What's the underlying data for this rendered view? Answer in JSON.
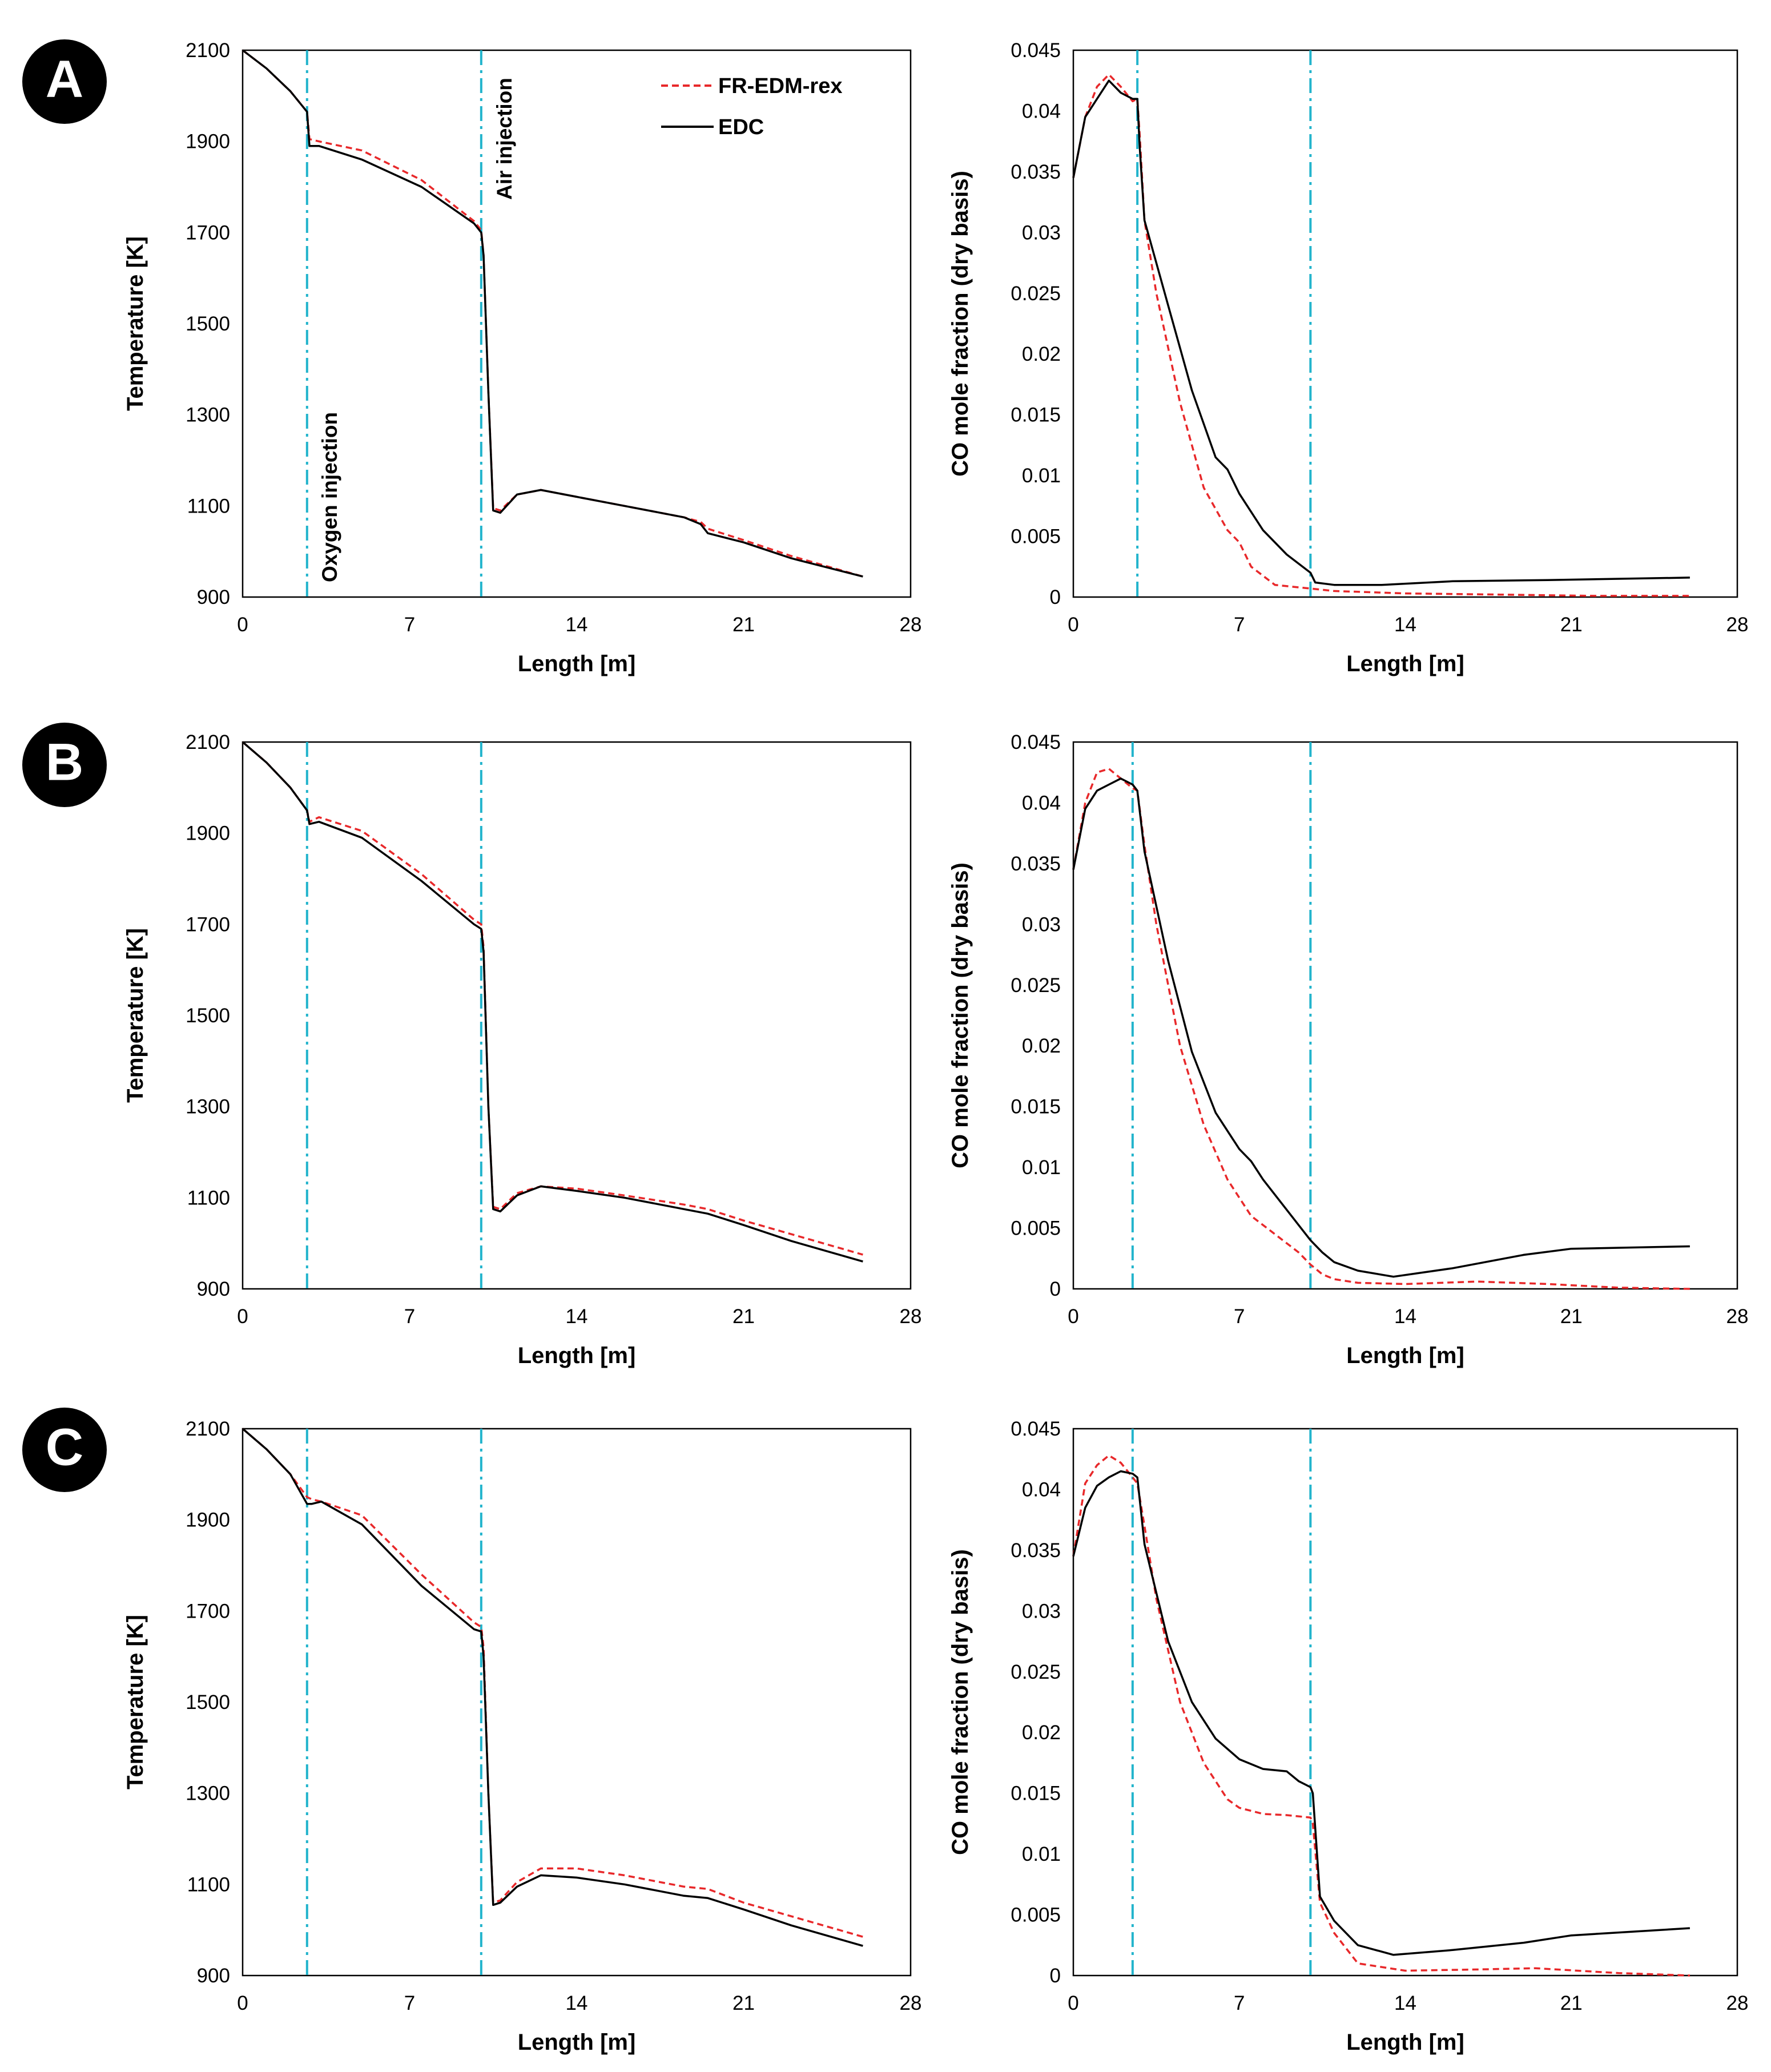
{
  "figure": {
    "badge_color": "#000000",
    "badge_text_color": "#ffffff",
    "series_colors": {
      "FR-EDM-rex": "#e8282a",
      "EDC": "#000000"
    },
    "injection_line_color": "#22b4cc"
  },
  "legend": {
    "entries": [
      {
        "name": "FR-EDM-rex",
        "style": "dashed",
        "color": "#e8282a"
      },
      {
        "name": "EDC",
        "style": "solid",
        "color": "#000000"
      }
    ]
  },
  "annotations": {
    "oxygen_injection": "Oxygen injection",
    "air_injection": "Air injection"
  },
  "chart_data": [
    {
      "panel": "A",
      "type": "line",
      "xlabel": "Length [m]",
      "ylabel": "Temperature [K]",
      "xlim": [
        0,
        28
      ],
      "ylim": [
        900,
        2100
      ],
      "xticks": [
        "0",
        "7",
        "14",
        "21",
        "28"
      ],
      "yticks": [
        "900",
        "1100",
        "1300",
        "1500",
        "1700",
        "1900",
        "2100"
      ],
      "injection_lines_x": [
        2.7,
        10
      ],
      "series": [
        {
          "name": "FR-EDM-rex",
          "x": [
            0,
            1,
            2,
            2.7,
            2.8,
            3.2,
            5,
            7.5,
            9.7,
            10,
            10.1,
            10.3,
            10.5,
            10.8,
            11.5,
            12.5,
            14,
            16,
            18.5,
            19.2,
            19.5,
            21,
            23,
            26
          ],
          "y": [
            2100,
            2060,
            2010,
            1965,
            1905,
            1900,
            1880,
            1815,
            1725,
            1705,
            1650,
            1350,
            1095,
            1090,
            1125,
            1135,
            1120,
            1100,
            1075,
            1065,
            1050,
            1025,
            990,
            945
          ]
        },
        {
          "name": "EDC",
          "x": [
            0,
            1,
            2,
            2.7,
            2.8,
            3.2,
            5,
            7.5,
            9.7,
            10,
            10.1,
            10.3,
            10.5,
            10.8,
            11.5,
            12.5,
            14,
            16,
            18.5,
            19.2,
            19.5,
            21,
            23,
            26
          ],
          "y": [
            2100,
            2060,
            2010,
            1965,
            1890,
            1890,
            1860,
            1800,
            1720,
            1700,
            1650,
            1350,
            1090,
            1085,
            1125,
            1135,
            1120,
            1100,
            1075,
            1060,
            1040,
            1020,
            985,
            945
          ]
        }
      ]
    },
    {
      "panel": "A",
      "type": "line",
      "xlabel": "Length [m]",
      "ylabel": "CO mole fraction (dry basis)",
      "xlim": [
        0,
        28
      ],
      "ylim": [
        0,
        0.045
      ],
      "xticks": [
        "0",
        "7",
        "14",
        "21",
        "28"
      ],
      "yticks": [
        "0",
        "0.005",
        "0.01",
        "0.015",
        "0.02",
        "0.025",
        "0.03",
        "0.035",
        "0.04",
        "0.045"
      ],
      "injection_lines_x": [
        2.7,
        10
      ],
      "series": [
        {
          "name": "FR-EDM-rex",
          "x": [
            0,
            0.5,
            1,
            1.5,
            2,
            2.5,
            2.7,
            2.8,
            3,
            3.5,
            4.5,
            5.5,
            6.5,
            7,
            7.5,
            8.5,
            10,
            11,
            14,
            18,
            22,
            26
          ],
          "y": [
            0.0345,
            0.0395,
            0.042,
            0.043,
            0.042,
            0.0408,
            0.041,
            0.038,
            0.031,
            0.025,
            0.016,
            0.009,
            0.0055,
            0.0045,
            0.0025,
            0.001,
            0.0007,
            0.0005,
            0.0003,
            0.0002,
            0.0001,
            0.0001
          ]
        },
        {
          "name": "EDC",
          "x": [
            0,
            0.5,
            1,
            1.5,
            2,
            2.5,
            2.7,
            2.8,
            3,
            4,
            5,
            6,
            6.5,
            7,
            8,
            9,
            10,
            10.2,
            11,
            13,
            16,
            20,
            26
          ],
          "y": [
            0.0345,
            0.0395,
            0.041,
            0.0425,
            0.0415,
            0.041,
            0.041,
            0.037,
            0.031,
            0.024,
            0.017,
            0.0115,
            0.0105,
            0.0085,
            0.0055,
            0.0035,
            0.002,
            0.0012,
            0.001,
            0.001,
            0.0013,
            0.0014,
            0.0016
          ]
        }
      ]
    },
    {
      "panel": "B",
      "type": "line",
      "xlabel": "Length [m]",
      "ylabel": "Temperature [K]",
      "xlim": [
        0,
        28
      ],
      "ylim": [
        900,
        2100
      ],
      "xticks": [
        "0",
        "7",
        "14",
        "21",
        "28"
      ],
      "yticks": [
        "900",
        "1100",
        "1300",
        "1500",
        "1700",
        "1900",
        "2100"
      ],
      "injection_lines_x": [
        2.7,
        10
      ],
      "series": [
        {
          "name": "FR-EDM-rex",
          "x": [
            0,
            1,
            2,
            2.7,
            2.8,
            3.2,
            5,
            7.5,
            9.7,
            10,
            10.1,
            10.3,
            10.5,
            10.8,
            11.5,
            12.5,
            14,
            16,
            18.5,
            19.5,
            21,
            23,
            26
          ],
          "y": [
            2100,
            2055,
            2000,
            1950,
            1925,
            1935,
            1905,
            1810,
            1710,
            1700,
            1650,
            1300,
            1080,
            1075,
            1110,
            1125,
            1120,
            1105,
            1085,
            1075,
            1050,
            1020,
            975
          ]
        },
        {
          "name": "EDC",
          "x": [
            0,
            1,
            2,
            2.7,
            2.8,
            3.2,
            5,
            7.5,
            9.7,
            10,
            10.1,
            10.3,
            10.5,
            10.8,
            11.5,
            12.5,
            14,
            16,
            18.5,
            19.5,
            21,
            23,
            26
          ],
          "y": [
            2100,
            2055,
            2000,
            1950,
            1920,
            1925,
            1890,
            1795,
            1700,
            1690,
            1640,
            1300,
            1075,
            1070,
            1105,
            1125,
            1115,
            1100,
            1075,
            1065,
            1040,
            1005,
            960
          ]
        }
      ]
    },
    {
      "panel": "B",
      "type": "line",
      "xlabel": "Length [m]",
      "ylabel": "CO mole fraction (dry basis)",
      "xlim": [
        0,
        28
      ],
      "ylim": [
        0,
        0.045
      ],
      "xticks": [
        "0",
        "7",
        "14",
        "21",
        "28"
      ],
      "yticks": [
        "0",
        "0.005",
        "0.01",
        "0.015",
        "0.02",
        "0.025",
        "0.03",
        "0.035",
        "0.04",
        "0.045"
      ],
      "injection_lines_x": [
        2.5,
        10
      ],
      "series": [
        {
          "name": "FR-EDM-rex",
          "x": [
            0,
            0.5,
            1,
            1.5,
            2,
            2.5,
            2.7,
            3,
            3.5,
            4.5,
            5.5,
            6.5,
            7.5,
            8.5,
            9.5,
            10,
            10.5,
            11,
            12,
            14,
            17,
            20,
            23,
            26
          ],
          "y": [
            0.0345,
            0.04,
            0.0425,
            0.0428,
            0.042,
            0.0412,
            0.041,
            0.0365,
            0.03,
            0.02,
            0.0135,
            0.009,
            0.006,
            0.0045,
            0.003,
            0.002,
            0.0012,
            0.0008,
            0.0005,
            0.0004,
            0.0006,
            0.0004,
            0.0001,
            0
          ]
        },
        {
          "name": "EDC",
          "x": [
            0,
            0.5,
            1,
            1.5,
            2,
            2.5,
            2.7,
            3,
            4,
            5,
            6,
            7,
            7.5,
            8,
            9,
            10,
            10.5,
            11,
            12,
            13.5,
            16,
            19,
            21,
            26
          ],
          "y": [
            0.0345,
            0.0395,
            0.041,
            0.0415,
            0.042,
            0.0415,
            0.041,
            0.036,
            0.027,
            0.0195,
            0.0145,
            0.0115,
            0.0105,
            0.009,
            0.0065,
            0.004,
            0.003,
            0.0022,
            0.0015,
            0.001,
            0.0017,
            0.0028,
            0.0033,
            0.0035
          ]
        }
      ]
    },
    {
      "panel": "C",
      "type": "line",
      "xlabel": "Length [m]",
      "ylabel": "Temperature [K]",
      "xlim": [
        0,
        28
      ],
      "ylim": [
        900,
        2100
      ],
      "xticks": [
        "0",
        "7",
        "14",
        "21",
        "28"
      ],
      "yticks": [
        "900",
        "1100",
        "1300",
        "1500",
        "1700",
        "1900",
        "2100"
      ],
      "injection_lines_x": [
        2.7,
        10
      ],
      "series": [
        {
          "name": "FR-EDM-rex",
          "x": [
            0,
            1,
            2,
            2.7,
            2.9,
            3.3,
            5,
            7.5,
            9.7,
            10,
            10.1,
            10.3,
            10.5,
            10.8,
            11.5,
            12.5,
            14,
            16,
            18.5,
            19.5,
            21,
            23,
            26
          ],
          "y": [
            2100,
            2055,
            2000,
            1950,
            1945,
            1940,
            1910,
            1780,
            1675,
            1665,
            1620,
            1300,
            1060,
            1065,
            1105,
            1135,
            1135,
            1120,
            1095,
            1090,
            1060,
            1030,
            985
          ]
        },
        {
          "name": "EDC",
          "x": [
            0,
            1,
            2,
            2.7,
            2.9,
            3.3,
            5,
            7.5,
            9.7,
            10,
            10.1,
            10.3,
            10.5,
            10.8,
            11.5,
            12.5,
            14,
            16,
            18.5,
            19.5,
            21,
            23,
            26
          ],
          "y": [
            2100,
            2055,
            2000,
            1935,
            1935,
            1940,
            1890,
            1755,
            1660,
            1655,
            1600,
            1300,
            1055,
            1060,
            1095,
            1120,
            1115,
            1100,
            1075,
            1070,
            1045,
            1010,
            965
          ]
        }
      ]
    },
    {
      "panel": "C",
      "type": "line",
      "xlabel": "Length [m]",
      "ylabel": "CO mole fraction (dry basis)",
      "xlim": [
        0,
        28
      ],
      "ylim": [
        0,
        0.045
      ],
      "xticks": [
        "0",
        "7",
        "14",
        "21",
        "28"
      ],
      "yticks": [
        "0",
        "0.005",
        "0.01",
        "0.015",
        "0.02",
        "0.025",
        "0.03",
        "0.035",
        "0.04",
        "0.045"
      ],
      "injection_lines_x": [
        2.5,
        10
      ],
      "series": [
        {
          "name": "FR-EDM-rex",
          "x": [
            0,
            0.5,
            1,
            1.5,
            2,
            2.5,
            2.7,
            3,
            3.5,
            4.5,
            5.5,
            6.5,
            7,
            8,
            9,
            10,
            10.1,
            10.4,
            11,
            12,
            14,
            17,
            19.5,
            23,
            26
          ],
          "y": [
            0.0345,
            0.0405,
            0.042,
            0.0428,
            0.0422,
            0.041,
            0.0405,
            0.037,
            0.031,
            0.0225,
            0.0175,
            0.0145,
            0.0138,
            0.0133,
            0.0132,
            0.013,
            0.0125,
            0.006,
            0.0035,
            0.001,
            0.0004,
            0.0005,
            0.0006,
            0.0002,
            0
          ]
        },
        {
          "name": "EDC",
          "x": [
            0,
            0.5,
            1,
            1.5,
            2,
            2.5,
            2.7,
            3,
            4,
            5,
            6,
            7,
            8,
            9,
            9.5,
            10,
            10.1,
            10.4,
            11,
            12,
            13.5,
            16,
            19,
            21,
            26
          ],
          "y": [
            0.0345,
            0.0385,
            0.0403,
            0.041,
            0.0415,
            0.0413,
            0.041,
            0.0355,
            0.0275,
            0.0225,
            0.0195,
            0.0178,
            0.017,
            0.0168,
            0.016,
            0.0155,
            0.015,
            0.0065,
            0.0045,
            0.0025,
            0.0017,
            0.0021,
            0.0027,
            0.0033,
            0.0039
          ]
        }
      ]
    }
  ]
}
